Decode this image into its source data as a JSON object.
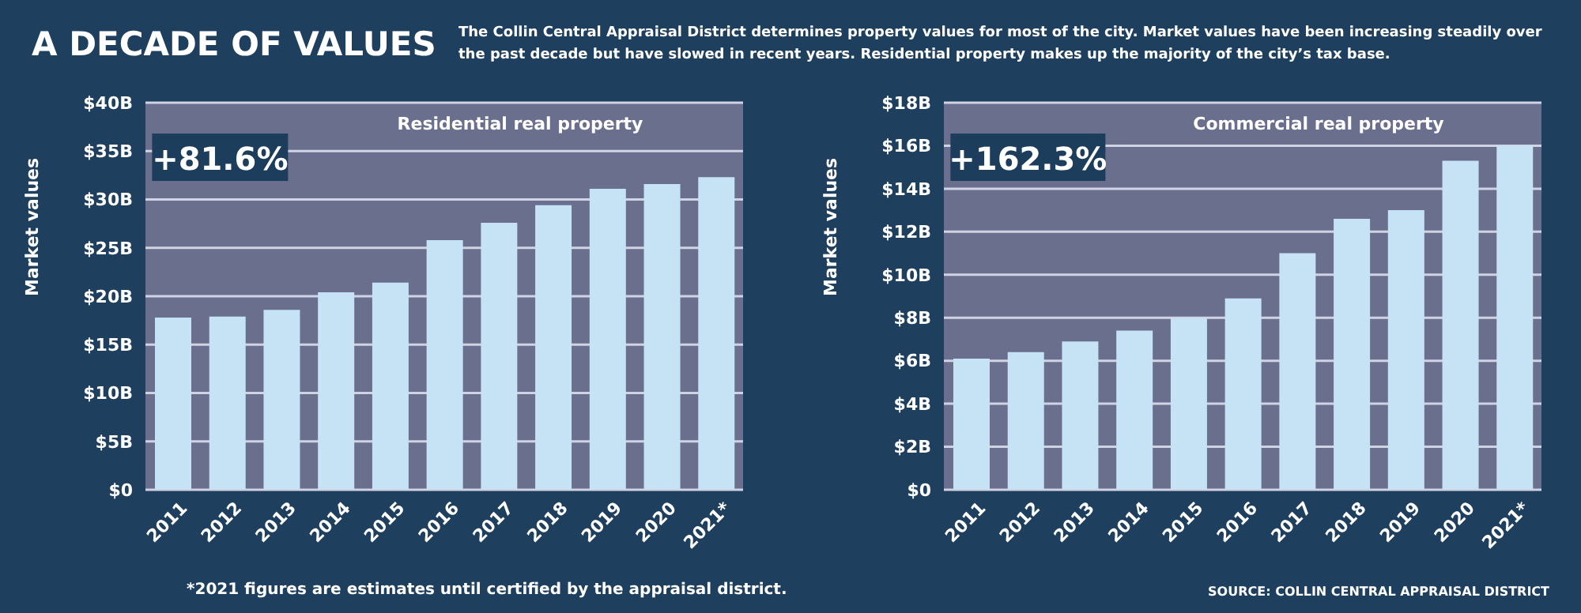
{
  "chart_data": [
    {
      "type": "bar",
      "title": "Residential real property",
      "ylabel": "Market values",
      "categories": [
        "2011",
        "2012",
        "2013",
        "2014",
        "2015",
        "2016",
        "2017",
        "2018",
        "2019",
        "2020",
        "2021*"
      ],
      "values": [
        17.8,
        17.9,
        18.6,
        20.4,
        21.4,
        25.8,
        27.6,
        29.4,
        31.1,
        31.6,
        32.3
      ],
      "color": "#c6e2f5",
      "ylim": [
        0,
        40
      ],
      "yticks": [
        {
          "value": 0,
          "label": "$0"
        },
        {
          "value": 5,
          "label": "$5B"
        },
        {
          "value": 10,
          "label": "$10B"
        },
        {
          "value": 15,
          "label": "$15B"
        },
        {
          "value": 20,
          "label": "$20B"
        },
        {
          "value": 25,
          "label": "$25B"
        },
        {
          "value": 30,
          "label": "$30B"
        },
        {
          "value": 35,
          "label": "$35B"
        },
        {
          "value": 40,
          "label": "$40B"
        }
      ],
      "grid": "y",
      "annotations": [
        "A DECADE OF VALUES",
        "The Collin Central Appraisal District determines property values for most of the city. Market values have been increasing steadily over the past decade but have slowed in recent years. Residential property makes up the majority of the city’s tax base.",
        "*2021 figures are estimates until certified by the appraisal district.",
        "+81.6%"
      ]
    },
    {
      "type": "bar",
      "title": "Commercial real property",
      "ylabel": "Market values",
      "categories": [
        "2011",
        "2012",
        "2013",
        "2014",
        "2015",
        "2016",
        "2017",
        "2018",
        "2019",
        "2020",
        "2021*"
      ],
      "values": [
        6.1,
        6.4,
        6.9,
        7.4,
        8.0,
        8.9,
        11.0,
        12.6,
        13.0,
        15.3,
        16.0
      ],
      "color": "#c6e2f5",
      "ylim": [
        0,
        18
      ],
      "yticks": [
        {
          "value": 0,
          "label": "$0"
        },
        {
          "value": 2,
          "label": "$2B"
        },
        {
          "value": 4,
          "label": "$4B"
        },
        {
          "value": 6,
          "label": "$6B"
        },
        {
          "value": 8,
          "label": "$8B"
        },
        {
          "value": 10,
          "label": "$10B"
        },
        {
          "value": 12,
          "label": "$12B"
        },
        {
          "value": 14,
          "label": "$14B"
        },
        {
          "value": 16,
          "label": "$16B"
        },
        {
          "value": 18,
          "label": "$18B"
        }
      ],
      "grid": "y",
      "annotations": [
        "SOURCE: COLLIN CENTRAL APPRAISAL DISTRICT",
        "+162.3%"
      ]
    }
  ]
}
